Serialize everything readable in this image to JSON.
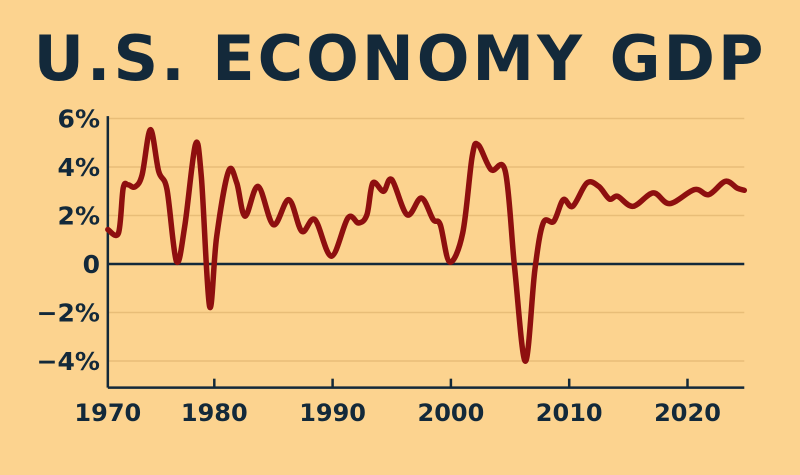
{
  "chart_data": {
    "type": "line",
    "title": "U.S. ECONOMY GDP",
    "xlabel": "",
    "ylabel": "",
    "xlim": [
      1971,
      2024.8
    ],
    "ylim": [
      -5.1,
      6.1
    ],
    "grid": true,
    "x_ticks": [
      {
        "value": 1970,
        "label": "1970"
      },
      {
        "value": 1980,
        "label": "1980"
      },
      {
        "value": 1990,
        "label": "1990"
      },
      {
        "value": 2000,
        "label": "2000"
      },
      {
        "value": 2010,
        "label": "2010"
      },
      {
        "value": 2020,
        "label": "2020"
      }
    ],
    "y_ticks": [
      {
        "value": 6,
        "label": "6%"
      },
      {
        "value": 4,
        "label": "4%"
      },
      {
        "value": 2,
        "label": "2%"
      },
      {
        "value": 0,
        "label": "0"
      },
      {
        "value": -2,
        "label": "−2%"
      },
      {
        "value": -4,
        "label": "−4%"
      }
    ],
    "colors": {
      "background": "#fcd38f",
      "line": "#8e0f0f",
      "axis": "#13293a",
      "grid": "#e8bd78"
    },
    "series": [
      {
        "x": [
          1971.0,
          1971.9,
          1972.3,
          1972.7,
          1973.3,
          1973.9,
          1974.6,
          1975.3,
          1976.0,
          1976.8,
          1977.5,
          1978.4,
          1978.9,
          1979.6,
          1980.2,
          1981.2,
          1981.9,
          1982.6,
          1983.7,
          1985.0,
          1986.3,
          1987.4,
          1988.5,
          1989.9,
          1991.3,
          1992.2,
          1992.9,
          1993.4,
          1994.3,
          1995.0,
          1996.3,
          1997.5,
          1998.5,
          1999.1,
          1999.9,
          2001.0,
          2001.8,
          2002.3,
          2003.4,
          2004.6,
          2005.4,
          2006.3,
          2007.1,
          2007.8,
          2008.7,
          2009.5,
          2010.3,
          2011.5,
          2012.5,
          2013.4,
          2014.1,
          2015.4,
          2017.1,
          2018.5,
          2020.6,
          2021.8,
          2023.2,
          2024.2,
          2024.8
        ],
        "y": [
          1.42,
          1.28,
          3.13,
          3.27,
          3.18,
          3.68,
          5.54,
          3.82,
          3.07,
          0.11,
          1.55,
          4.92,
          3.62,
          -1.75,
          1.14,
          3.82,
          3.34,
          1.97,
          3.2,
          1.62,
          2.65,
          1.35,
          1.83,
          0.32,
          1.9,
          1.69,
          2.03,
          3.34,
          3.0,
          3.48,
          2.03,
          2.72,
          1.83,
          1.62,
          0.08,
          1.28,
          4.44,
          4.92,
          3.89,
          3.82,
          -0.23,
          -4.01,
          -0.23,
          1.69,
          1.76,
          2.65,
          2.38,
          3.34,
          3.2,
          2.68,
          2.79,
          2.38,
          2.93,
          2.49,
          3.07,
          2.86,
          3.41,
          3.13,
          3.04
        ]
      }
    ]
  }
}
